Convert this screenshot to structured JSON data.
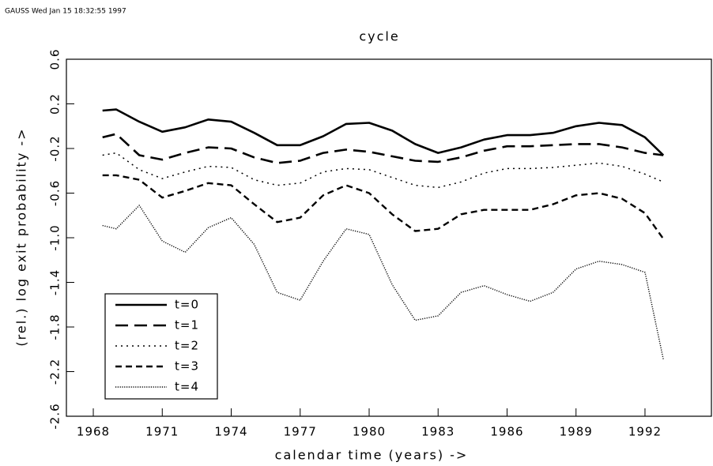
{
  "header": "GAUSS    Wed Jan 15 18:32:55 1997",
  "chart_data": {
    "type": "line",
    "title": "cycle",
    "x_label": "calendar time (years) ->",
    "y_label": "(rel.) log exit probability ->",
    "x": [
      1968.4,
      1969,
      1970,
      1971,
      1972,
      1973,
      1974,
      1975,
      1976,
      1977,
      1978,
      1979,
      1980,
      1981,
      1982,
      1983,
      1984,
      1985,
      1986,
      1987,
      1988,
      1989,
      1990,
      1991,
      1992,
      1992.8
    ],
    "series": [
      {
        "name": "t=0",
        "color": "#000000",
        "dash": "solid",
        "values": [
          0.14,
          0.15,
          0.04,
          -0.05,
          -0.01,
          0.06,
          0.04,
          -0.06,
          -0.17,
          -0.17,
          -0.09,
          0.02,
          0.03,
          -0.04,
          -0.16,
          -0.24,
          -0.19,
          -0.12,
          -0.08,
          -0.08,
          -0.06,
          0.0,
          0.03,
          0.01,
          -0.1,
          -0.26
        ]
      },
      {
        "name": "t=1",
        "color": "#000000",
        "dash": "long",
        "values": [
          -0.1,
          -0.07,
          -0.26,
          -0.3,
          -0.24,
          -0.19,
          -0.2,
          -0.28,
          -0.33,
          -0.31,
          -0.24,
          -0.21,
          -0.23,
          -0.27,
          -0.31,
          -0.32,
          -0.28,
          -0.22,
          -0.18,
          -0.18,
          -0.17,
          -0.16,
          -0.16,
          -0.19,
          -0.24,
          -0.26
        ]
      },
      {
        "name": "t=2",
        "color": "#000000",
        "dash": "dotted",
        "values": [
          -0.26,
          -0.24,
          -0.39,
          -0.47,
          -0.41,
          -0.36,
          -0.37,
          -0.48,
          -0.53,
          -0.51,
          -0.41,
          -0.38,
          -0.39,
          -0.46,
          -0.53,
          -0.55,
          -0.5,
          -0.42,
          -0.38,
          -0.38,
          -0.37,
          -0.35,
          -0.33,
          -0.36,
          -0.43,
          -0.5
        ]
      },
      {
        "name": "t=3",
        "color": "#000000",
        "dash": "short",
        "values": [
          -0.44,
          -0.44,
          -0.48,
          -0.64,
          -0.58,
          -0.51,
          -0.53,
          -0.7,
          -0.86,
          -0.82,
          -0.62,
          -0.53,
          -0.6,
          -0.79,
          -0.94,
          -0.92,
          -0.79,
          -0.75,
          -0.75,
          -0.75,
          -0.7,
          -0.62,
          -0.6,
          -0.65,
          -0.78,
          -1.01
        ]
      },
      {
        "name": "t=4",
        "color": "#000000",
        "dash": "fine",
        "values": [
          -0.89,
          -0.92,
          -0.71,
          -1.03,
          -1.13,
          -0.91,
          -0.82,
          -1.06,
          -1.49,
          -1.56,
          -1.21,
          -0.92,
          -0.97,
          -1.42,
          -1.74,
          -1.7,
          -1.49,
          -1.43,
          -1.51,
          -1.57,
          -1.49,
          -1.28,
          -1.21,
          -1.24,
          -1.31,
          -2.09
        ]
      }
    ],
    "xlim": [
      1966.83,
      1994.89
    ],
    "xticks": [
      1968,
      1971,
      1974,
      1977,
      1980,
      1983,
      1986,
      1989,
      1992
    ],
    "ylim": [
      -2.6,
      0.6
    ],
    "yticks": [
      -2.6,
      -2.2,
      -1.8,
      -1.4,
      {
        "value": -1,
        "label": "-1.0"
      },
      -0.6,
      -0.2,
      0.2,
      0.6
    ],
    "legend": "lower left",
    "grid": false
  }
}
